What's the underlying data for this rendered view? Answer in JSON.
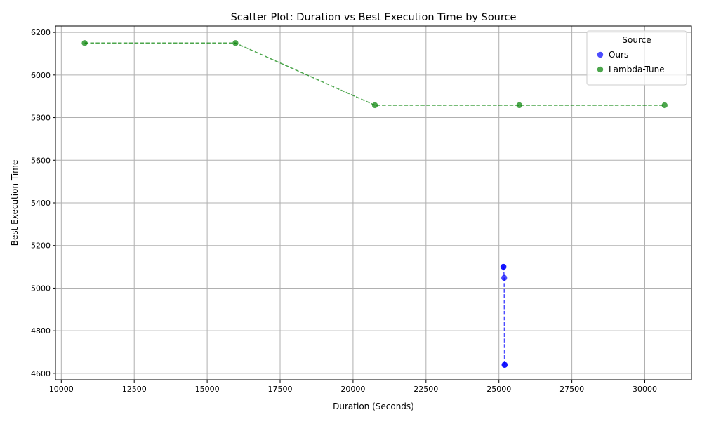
{
  "chart_data": {
    "type": "scatter",
    "title": "Scatter Plot: Duration vs Best Execution Time by Source",
    "xlabel": "Duration (Seconds)",
    "ylabel": "Best Execution Time",
    "xlim": [
      9800,
      31600
    ],
    "ylim": [
      4570,
      6230
    ],
    "xticks": [
      10000,
      12500,
      15000,
      17500,
      20000,
      22500,
      25000,
      27500,
      30000
    ],
    "yticks": [
      4600,
      4800,
      5000,
      5200,
      5400,
      5600,
      5800,
      6000,
      6200
    ],
    "grid": true,
    "legend": {
      "title": "Source",
      "position": "top-right"
    },
    "series": [
      {
        "name": "Ours",
        "color": "#0000ff",
        "linestyle": "dashed",
        "points": [
          {
            "x": 25150,
            "y": 5100
          },
          {
            "x": 25160,
            "y": 5100
          },
          {
            "x": 25180,
            "y": 5048
          },
          {
            "x": 25190,
            "y": 4640
          },
          {
            "x": 25200,
            "y": 4640
          }
        ]
      },
      {
        "name": "Lambda-Tune",
        "color": "#008000",
        "linestyle": "dashed",
        "points": [
          {
            "x": 10800,
            "y": 6150
          },
          {
            "x": 15970,
            "y": 6150
          },
          {
            "x": 20750,
            "y": 5858
          },
          {
            "x": 25700,
            "y": 5858
          },
          {
            "x": 30680,
            "y": 5858
          }
        ]
      }
    ]
  }
}
